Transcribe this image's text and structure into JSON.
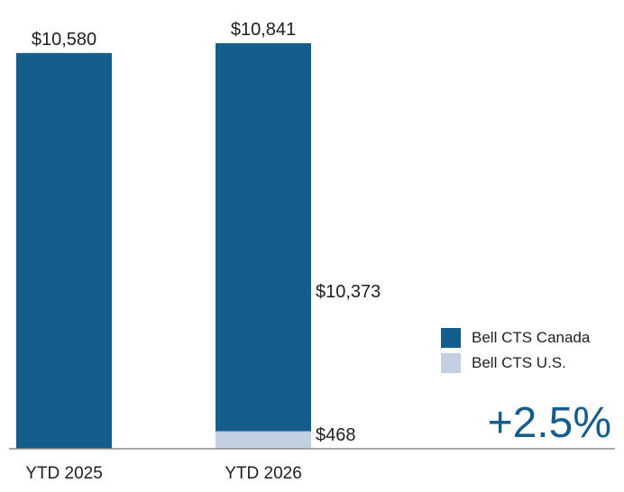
{
  "chart_data": {
    "type": "bar",
    "stacked": true,
    "categories": [
      "YTD 2025",
      "YTD 2026"
    ],
    "series": [
      {
        "name": "Bell CTS Canada",
        "values": [
          10580,
          10373
        ],
        "color": "#145d8c"
      },
      {
        "name": "Bell CTS U.S.",
        "values": [
          0,
          468
        ],
        "color": "#c3cfe2"
      }
    ],
    "totals": [
      "$10,580",
      "$10,841"
    ],
    "segment_labels": {
      "canada_2026": "$10,373",
      "us_2026": "$468"
    },
    "ylim": [
      0,
      10841
    ],
    "grid": false,
    "legend_position": "right",
    "title": "",
    "xlabel": "",
    "ylabel": ""
  },
  "change_label": "+2.5%"
}
